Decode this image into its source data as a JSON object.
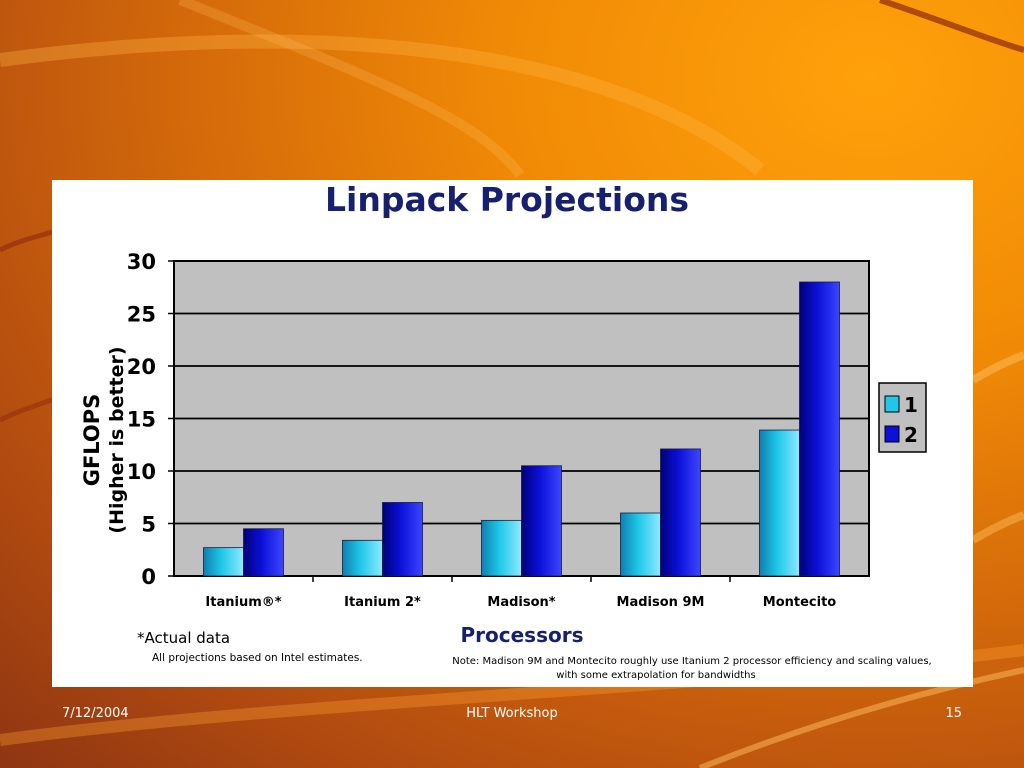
{
  "footer": {
    "date": "7/12/2004",
    "center": "HLT Workshop",
    "page": "15"
  },
  "chart_data": {
    "type": "bar",
    "title": "Linpack Projections",
    "xlabel": "Processors",
    "ylabel": [
      "GFLOPS",
      "(Higher is better)"
    ],
    "categories": [
      "Itanium®*",
      "Itanium 2*",
      "Madison*",
      "Madison 9M",
      "Montecito"
    ],
    "series": [
      {
        "name": "1",
        "values": [
          2.7,
          3.4,
          5.3,
          6.0,
          13.9
        ],
        "color": "#1ec8e8"
      },
      {
        "name": "2",
        "values": [
          4.5,
          7.0,
          10.5,
          12.1,
          28.0
        ],
        "color": "#0c10d8"
      }
    ],
    "ylim": [
      0,
      30
    ],
    "yticks": [
      0,
      5,
      10,
      15,
      20,
      25,
      30
    ],
    "grid": true,
    "plot_background": "#c0c0c0",
    "legend_position": "right",
    "notes": {
      "actual": "*Actual data",
      "projections": "All projections based on Intel estimates.",
      "note_line1": "Note: Madison 9M and Montecito roughly use Itanium 2 processor efficiency and scaling values,",
      "note_line2": "with some extrapolation  for bandwidths"
    }
  }
}
